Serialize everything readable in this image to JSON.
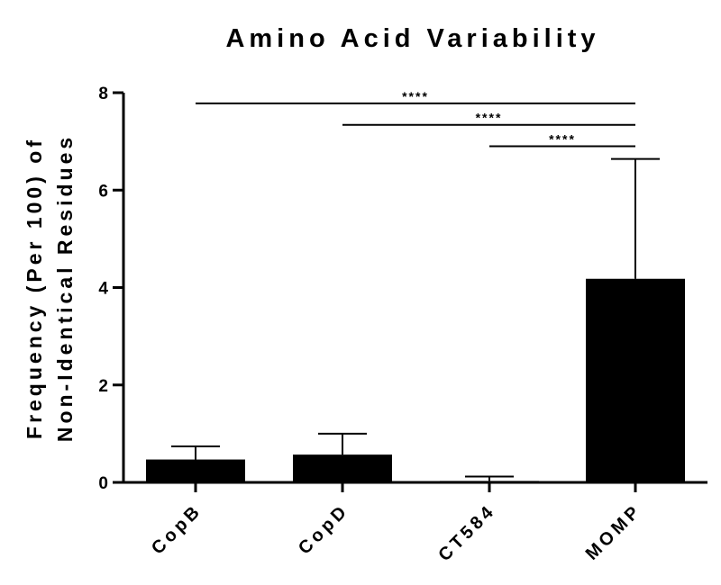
{
  "chart_data": {
    "type": "bar",
    "title": "Amino Acid Variability",
    "ylabel_line1": "Frequency (Per 100) of",
    "ylabel_line2": "Non-Identical Residues",
    "xlabel": "",
    "categories": [
      "CopB",
      "CopD",
      "CT584",
      "MOMP"
    ],
    "values": [
      0.47,
      0.57,
      0.03,
      4.18
    ],
    "error_upper": [
      0.74,
      1.0,
      0.12,
      6.64
    ],
    "ylim": [
      0,
      8
    ],
    "yticks": [
      "0",
      "2",
      "4",
      "6",
      "8"
    ],
    "bar_color": "#000000",
    "grid": false,
    "significance": [
      {
        "from": 0,
        "to": 3,
        "label": "****",
        "y": 7.78
      },
      {
        "from": 1,
        "to": 3,
        "label": "****",
        "y": 7.34
      },
      {
        "from": 2,
        "to": 3,
        "label": "****",
        "y": 6.9
      }
    ]
  }
}
